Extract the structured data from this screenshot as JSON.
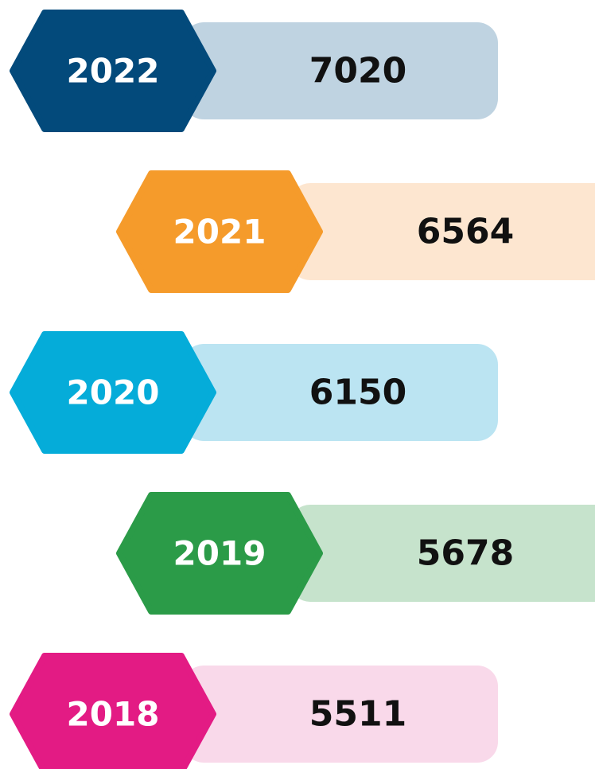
{
  "items": [
    {
      "year": "2022",
      "value": "7020"
    },
    {
      "year": "2021",
      "value": "6564"
    },
    {
      "year": "2020",
      "value": "6150"
    },
    {
      "year": "2019",
      "value": "5678"
    },
    {
      "year": "2018",
      "value": "5511"
    }
  ]
}
